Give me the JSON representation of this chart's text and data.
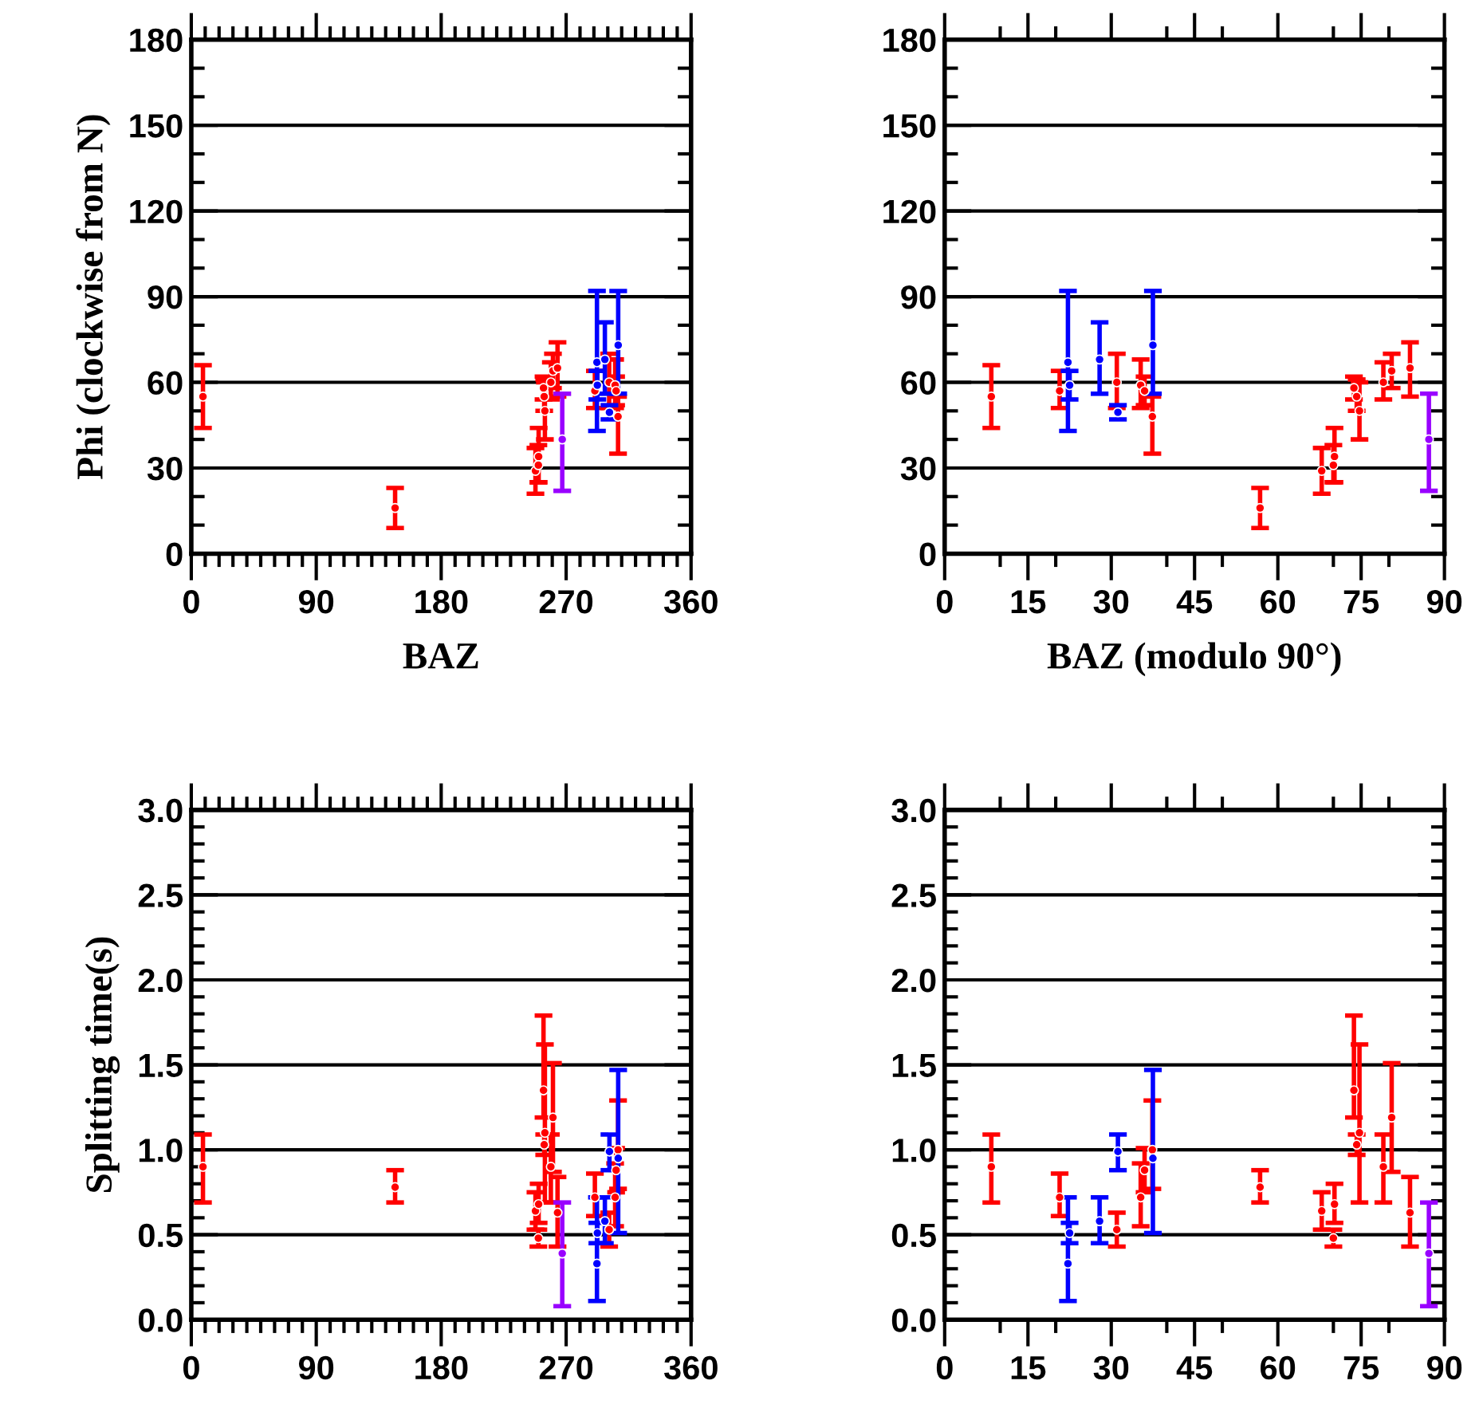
{
  "chart_data": [
    {
      "type": "scatter",
      "ylabel": "Phi (clockwise from N)",
      "xlabel": "BAZ",
      "xlim": [
        0,
        360
      ],
      "ylim": [
        0,
        180
      ],
      "grid": "y",
      "marker": "circle",
      "legend": false,
      "xticks": [
        0,
        {
          "value": 10,
          "label": null
        },
        {
          "value": 20,
          "label": null
        },
        {
          "value": 30,
          "label": null
        },
        {
          "value": 40,
          "label": null
        },
        {
          "value": 50,
          "label": null
        },
        {
          "value": 60,
          "label": null
        },
        {
          "value": 70,
          "label": null
        },
        {
          "value": 80,
          "label": null
        },
        90,
        {
          "value": 100,
          "label": null
        },
        {
          "value": 110,
          "label": null
        },
        {
          "value": 120,
          "label": null
        },
        {
          "value": 130,
          "label": null
        },
        {
          "value": 140,
          "label": null
        },
        {
          "value": 150,
          "label": null
        },
        {
          "value": 160,
          "label": null
        },
        {
          "value": 170,
          "label": null
        },
        180,
        {
          "value": 190,
          "label": null
        },
        {
          "value": 200,
          "label": null
        },
        {
          "value": 210,
          "label": null
        },
        {
          "value": 220,
          "label": null
        },
        {
          "value": 230,
          "label": null
        },
        {
          "value": 240,
          "label": null
        },
        {
          "value": 250,
          "label": null
        },
        {
          "value": 260,
          "label": null
        },
        270,
        {
          "value": 280,
          "label": null
        },
        {
          "value": 290,
          "label": null
        },
        {
          "value": 300,
          "label": null
        },
        {
          "value": 310,
          "label": null
        },
        {
          "value": 320,
          "label": null
        },
        {
          "value": 330,
          "label": null
        },
        {
          "value": 340,
          "label": null
        },
        {
          "value": 350,
          "label": null
        },
        360
      ],
      "yticks": [
        0,
        {
          "value": 10,
          "label": null
        },
        {
          "value": 20,
          "label": null
        },
        30,
        {
          "value": 40,
          "label": null
        },
        {
          "value": 50,
          "label": null
        },
        60,
        {
          "value": 70,
          "label": null
        },
        {
          "value": 80,
          "label": null
        },
        90,
        {
          "value": 100,
          "label": null
        },
        {
          "value": 110,
          "label": null
        },
        120,
        {
          "value": 130,
          "label": null
        },
        {
          "value": 140,
          "label": null
        },
        150,
        {
          "value": 160,
          "label": null
        },
        {
          "value": 170,
          "label": null
        },
        180
      ],
      "series": [
        {
          "color": "#ff0000",
          "x": [
            8.4,
            290.7,
            301,
            305.3,
            306,
            307.4,
            146.8,
            247.9,
            250.2,
            250,
            253.7,
            254.2,
            254.7,
            259,
            260.5,
            263.8
          ],
          "values": [
            55,
            57,
            60,
            59,
            57,
            48,
            16,
            29,
            34,
            31,
            58,
            55,
            50,
            60,
            64,
            65
          ],
          "errors": [
            [
              44,
              66
            ],
            [
              51,
              64
            ],
            [
              51,
              70
            ],
            [
              51,
              68
            ],
            [
              52,
              62
            ],
            [
              35,
              55
            ],
            [
              9,
              23
            ],
            [
              21,
              37
            ],
            [
              25,
              44
            ],
            [
              25,
              38
            ],
            [
              54,
              62
            ],
            [
              50,
              61
            ],
            [
              40,
              60
            ],
            [
              54,
              67
            ],
            [
              58,
              70
            ],
            [
              55,
              74
            ]
          ]
        },
        {
          "color": "#0000ff",
          "x": [
            292.2,
            292.5,
            297.9,
            301.2,
            307.5
          ],
          "values": [
            67,
            59,
            68,
            49.5,
            73
          ],
          "errors": [
            [
              43,
              92
            ],
            [
              54,
              64
            ],
            [
              56,
              81
            ],
            [
              47,
              52
            ],
            [
              56,
              92
            ]
          ]
        },
        {
          "color": "#9900ff",
          "x": [
            267.2
          ],
          "values": [
            40
          ],
          "errors": [
            [
              22,
              56
            ]
          ]
        }
      ]
    },
    {
      "type": "scatter",
      "xlabel": "BAZ (modulo 90°)",
      "xlim": [
        0,
        90
      ],
      "ylim": [
        0,
        180
      ],
      "grid": "y",
      "marker": "circle",
      "legend": false,
      "xticks": [
        0,
        {
          "value": 10,
          "label": null
        },
        15,
        {
          "value": 20,
          "label": null
        },
        30,
        {
          "value": 40,
          "label": null
        },
        45,
        {
          "value": 50,
          "label": null
        },
        60,
        {
          "value": 70,
          "label": null
        },
        75,
        {
          "value": 80,
          "label": null
        },
        90
      ],
      "yticks": [
        0,
        {
          "value": 10,
          "label": null
        },
        {
          "value": 20,
          "label": null
        },
        30,
        {
          "value": 40,
          "label": null
        },
        {
          "value": 50,
          "label": null
        },
        60,
        {
          "value": 70,
          "label": null
        },
        {
          "value": 80,
          "label": null
        },
        90,
        {
          "value": 100,
          "label": null
        },
        {
          "value": 110,
          "label": null
        },
        120,
        {
          "value": 130,
          "label": null
        },
        {
          "value": 140,
          "label": null
        },
        150,
        {
          "value": 160,
          "label": null
        },
        {
          "value": 170,
          "label": null
        },
        180
      ],
      "series": [
        {
          "color": "#ff0000",
          "x": [
            8.4,
            20.7,
            31,
            35.3,
            36,
            37.4,
            56.8,
            67.9,
            70.2,
            70,
            73.7,
            74.2,
            74.7,
            79,
            80.5,
            83.8
          ],
          "values": [
            55,
            57,
            60,
            59,
            57,
            48,
            16,
            29,
            34,
            31,
            58,
            55,
            50,
            60,
            64,
            65
          ],
          "errors": [
            [
              44,
              66
            ],
            [
              51,
              64
            ],
            [
              51,
              70
            ],
            [
              51,
              68
            ],
            [
              52,
              62
            ],
            [
              35,
              55
            ],
            [
              9,
              23
            ],
            [
              21,
              37
            ],
            [
              25,
              44
            ],
            [
              25,
              38
            ],
            [
              54,
              62
            ],
            [
              50,
              61
            ],
            [
              40,
              60
            ],
            [
              54,
              67
            ],
            [
              58,
              70
            ],
            [
              55,
              74
            ]
          ]
        },
        {
          "color": "#0000ff",
          "x": [
            22.2,
            22.5,
            27.9,
            31.2,
            37.5
          ],
          "values": [
            67,
            59,
            68,
            49.5,
            73
          ],
          "errors": [
            [
              43,
              92
            ],
            [
              54,
              64
            ],
            [
              56,
              81
            ],
            [
              47,
              52
            ],
            [
              56,
              92
            ]
          ]
        },
        {
          "color": "#9900ff",
          "x": [
            87.2
          ],
          "values": [
            40
          ],
          "errors": [
            [
              22,
              56
            ]
          ]
        }
      ]
    },
    {
      "type": "scatter",
      "ylabel": "Splitting time(s)",
      "xlim": [
        0,
        360
      ],
      "ylim": [
        0,
        3
      ],
      "grid": "y",
      "marker": "circle",
      "legend": false,
      "xticks": [
        0,
        {
          "value": 10,
          "label": null
        },
        {
          "value": 20,
          "label": null
        },
        {
          "value": 30,
          "label": null
        },
        {
          "value": 40,
          "label": null
        },
        {
          "value": 50,
          "label": null
        },
        {
          "value": 60,
          "label": null
        },
        {
          "value": 70,
          "label": null
        },
        {
          "value": 80,
          "label": null
        },
        90,
        {
          "value": 100,
          "label": null
        },
        {
          "value": 110,
          "label": null
        },
        {
          "value": 120,
          "label": null
        },
        {
          "value": 130,
          "label": null
        },
        {
          "value": 140,
          "label": null
        },
        {
          "value": 150,
          "label": null
        },
        {
          "value": 160,
          "label": null
        },
        {
          "value": 170,
          "label": null
        },
        180,
        {
          "value": 190,
          "label": null
        },
        {
          "value": 200,
          "label": null
        },
        {
          "value": 210,
          "label": null
        },
        {
          "value": 220,
          "label": null
        },
        {
          "value": 230,
          "label": null
        },
        {
          "value": 240,
          "label": null
        },
        {
          "value": 250,
          "label": null
        },
        {
          "value": 260,
          "label": null
        },
        270,
        {
          "value": 280,
          "label": null
        },
        {
          "value": 290,
          "label": null
        },
        {
          "value": 300,
          "label": null
        },
        {
          "value": 310,
          "label": null
        },
        {
          "value": 320,
          "label": null
        },
        {
          "value": 330,
          "label": null
        },
        {
          "value": 340,
          "label": null
        },
        {
          "value": 350,
          "label": null
        },
        360
      ],
      "yticks": [
        {
          "value": 0,
          "label": "0.0"
        },
        {
          "value": 0.1,
          "label": null
        },
        {
          "value": 0.2,
          "label": null
        },
        {
          "value": 0.3,
          "label": null
        },
        {
          "value": 0.4,
          "label": null
        },
        0.5,
        {
          "value": 0.6,
          "label": null
        },
        {
          "value": 0.7,
          "label": null
        },
        {
          "value": 0.8,
          "label": null
        },
        {
          "value": 0.9,
          "label": null
        },
        {
          "value": 1,
          "label": "1.0"
        },
        {
          "value": 1.1,
          "label": null
        },
        {
          "value": 1.2,
          "label": null
        },
        {
          "value": 1.3,
          "label": null
        },
        {
          "value": 1.4,
          "label": null
        },
        1.5,
        {
          "value": 1.6,
          "label": null
        },
        {
          "value": 1.7,
          "label": null
        },
        {
          "value": 1.8,
          "label": null
        },
        {
          "value": 1.9,
          "label": null
        },
        {
          "value": 2,
          "label": "2.0"
        },
        {
          "value": 2.1,
          "label": null
        },
        {
          "value": 2.2,
          "label": null
        },
        {
          "value": 2.3,
          "label": null
        },
        {
          "value": 2.4,
          "label": null
        },
        2.5,
        {
          "value": 2.6,
          "label": null
        },
        {
          "value": 2.7,
          "label": null
        },
        {
          "value": 2.8,
          "label": null
        },
        {
          "value": 2.9,
          "label": null
        },
        {
          "value": 3,
          "label": "3.0"
        }
      ],
      "series": [
        {
          "color": "#ff0000",
          "x": [
            8.4,
            290.7,
            301,
            305.3,
            306,
            307.4,
            146.8,
            247.9,
            250.2,
            250,
            253.7,
            254.2,
            254.7,
            259,
            260.5,
            263.8
          ],
          "values": [
            0.9,
            0.72,
            0.53,
            0.72,
            0.88,
            1.0,
            0.78,
            0.64,
            0.68,
            0.48,
            1.35,
            1.03,
            1.1,
            0.9,
            1.19,
            0.63
          ],
          "errors": [
            [
              0.69,
              1.09
            ],
            [
              0.61,
              0.86
            ],
            [
              0.43,
              0.63
            ],
            [
              0.55,
              0.92
            ],
            [
              0.75,
              1.01
            ],
            [
              0.77,
              1.29
            ],
            [
              0.69,
              0.88
            ],
            [
              0.53,
              0.75
            ],
            [
              0.57,
              0.8
            ],
            [
              0.43,
              0.53
            ],
            [
              1.19,
              1.79
            ],
            [
              0.97,
              1.09
            ],
            [
              0.69,
              1.62
            ],
            [
              0.69,
              1.09
            ],
            [
              0.87,
              1.51
            ],
            [
              0.43,
              0.84
            ]
          ]
        },
        {
          "color": "#0000ff",
          "x": [
            292.2,
            292.5,
            297.9,
            301.2,
            307.5
          ],
          "values": [
            0.33,
            0.51,
            0.58,
            0.99,
            0.95
          ],
          "errors": [
            [
              0.11,
              0.72
            ],
            [
              0.45,
              0.57
            ],
            [
              0.45,
              0.72
            ],
            [
              0.88,
              1.09
            ],
            [
              0.51,
              1.47
            ]
          ]
        },
        {
          "color": "#9900ff",
          "x": [
            267.2
          ],
          "values": [
            0.39
          ],
          "errors": [
            [
              0.08,
              0.69
            ]
          ]
        }
      ]
    },
    {
      "type": "scatter",
      "xlim": [
        0,
        90
      ],
      "ylim": [
        0,
        3
      ],
      "grid": "y",
      "marker": "circle",
      "legend": false,
      "xticks": [
        0,
        {
          "value": 10,
          "label": null
        },
        15,
        {
          "value": 20,
          "label": null
        },
        30,
        {
          "value": 40,
          "label": null
        },
        45,
        {
          "value": 50,
          "label": null
        },
        60,
        {
          "value": 70,
          "label": null
        },
        75,
        {
          "value": 80,
          "label": null
        },
        90
      ],
      "yticks": [
        {
          "value": 0,
          "label": "0.0"
        },
        {
          "value": 0.1,
          "label": null
        },
        {
          "value": 0.2,
          "label": null
        },
        {
          "value": 0.3,
          "label": null
        },
        {
          "value": 0.4,
          "label": null
        },
        0.5,
        {
          "value": 0.6,
          "label": null
        },
        {
          "value": 0.7,
          "label": null
        },
        {
          "value": 0.8,
          "label": null
        },
        {
          "value": 0.9,
          "label": null
        },
        {
          "value": 1,
          "label": "1.0"
        },
        {
          "value": 1.1,
          "label": null
        },
        {
          "value": 1.2,
          "label": null
        },
        {
          "value": 1.3,
          "label": null
        },
        {
          "value": 1.4,
          "label": null
        },
        1.5,
        {
          "value": 1.6,
          "label": null
        },
        {
          "value": 1.7,
          "label": null
        },
        {
          "value": 1.8,
          "label": null
        },
        {
          "value": 1.9,
          "label": null
        },
        {
          "value": 2,
          "label": "2.0"
        },
        {
          "value": 2.1,
          "label": null
        },
        {
          "value": 2.2,
          "label": null
        },
        {
          "value": 2.3,
          "label": null
        },
        {
          "value": 2.4,
          "label": null
        },
        2.5,
        {
          "value": 2.6,
          "label": null
        },
        {
          "value": 2.7,
          "label": null
        },
        {
          "value": 2.8,
          "label": null
        },
        {
          "value": 2.9,
          "label": null
        },
        {
          "value": 3,
          "label": "3.0"
        }
      ],
      "series": [
        {
          "color": "#ff0000",
          "x": [
            8.4,
            20.7,
            31,
            35.3,
            36,
            37.4,
            56.8,
            67.9,
            70.2,
            70,
            73.7,
            74.2,
            74.7,
            79,
            80.5,
            83.8
          ],
          "values": [
            0.9,
            0.72,
            0.53,
            0.72,
            0.88,
            1.0,
            0.78,
            0.64,
            0.68,
            0.48,
            1.35,
            1.03,
            1.1,
            0.9,
            1.19,
            0.63
          ],
          "errors": [
            [
              0.69,
              1.09
            ],
            [
              0.61,
              0.86
            ],
            [
              0.43,
              0.63
            ],
            [
              0.55,
              0.92
            ],
            [
              0.75,
              1.01
            ],
            [
              0.77,
              1.29
            ],
            [
              0.69,
              0.88
            ],
            [
              0.53,
              0.75
            ],
            [
              0.57,
              0.8
            ],
            [
              0.43,
              0.53
            ],
            [
              1.19,
              1.79
            ],
            [
              0.97,
              1.09
            ],
            [
              0.69,
              1.62
            ],
            [
              0.69,
              1.09
            ],
            [
              0.87,
              1.51
            ],
            [
              0.43,
              0.84
            ]
          ]
        },
        {
          "color": "#0000ff",
          "x": [
            22.2,
            22.5,
            27.9,
            31.2,
            37.5
          ],
          "values": [
            0.33,
            0.51,
            0.58,
            0.99,
            0.95
          ],
          "errors": [
            [
              0.11,
              0.72
            ],
            [
              0.45,
              0.57
            ],
            [
              0.45,
              0.72
            ],
            [
              0.88,
              1.09
            ],
            [
              0.51,
              1.47
            ]
          ]
        },
        {
          "color": "#9900ff",
          "x": [
            87.2
          ],
          "values": [
            0.39
          ],
          "errors": [
            [
              0.08,
              0.69
            ]
          ]
        }
      ]
    }
  ]
}
